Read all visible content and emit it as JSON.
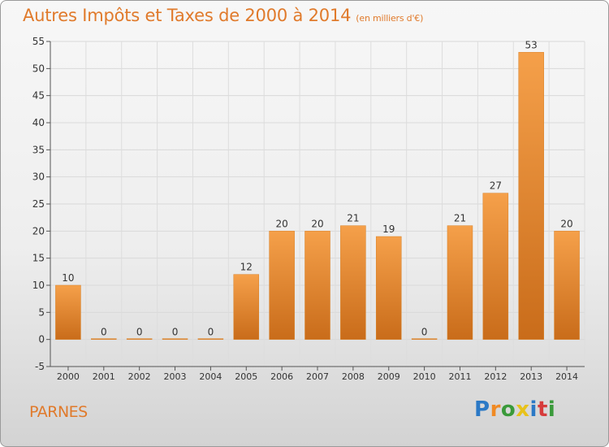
{
  "chart_data": {
    "type": "bar",
    "title": "Autres Impôts et Taxes de 2000 à 2014",
    "subtitle": "(en milliers d'€)",
    "categories": [
      "2000",
      "2001",
      "2002",
      "2003",
      "2004",
      "2005",
      "2006",
      "2007",
      "2008",
      "2009",
      "2010",
      "2011",
      "2012",
      "2013",
      "2014"
    ],
    "values": [
      10,
      0,
      0,
      0,
      0,
      12,
      20,
      20,
      21,
      19,
      0,
      21,
      27,
      53,
      20
    ],
    "ylim": [
      -5,
      55
    ],
    "yticks": [
      -5,
      0,
      5,
      10,
      15,
      20,
      25,
      30,
      35,
      40,
      45,
      50,
      55
    ],
    "grid": true,
    "bar_color": "#f0933a",
    "bar_color_dark": "#c66a18"
  },
  "footer": {
    "location": "PARNES"
  },
  "brand": {
    "text": "Proxiti",
    "letters": [
      {
        "ch": "P",
        "color": "#2b79c6"
      },
      {
        "ch": "r",
        "color": "#f08a24"
      },
      {
        "ch": "o",
        "color": "#3a9a3a"
      },
      {
        "ch": "x",
        "color": "#e8c21a"
      },
      {
        "ch": "i",
        "color": "#2b79c6"
      },
      {
        "ch": "t",
        "color": "#d63c3c"
      },
      {
        "ch": "i",
        "color": "#3a9a3a"
      }
    ]
  }
}
